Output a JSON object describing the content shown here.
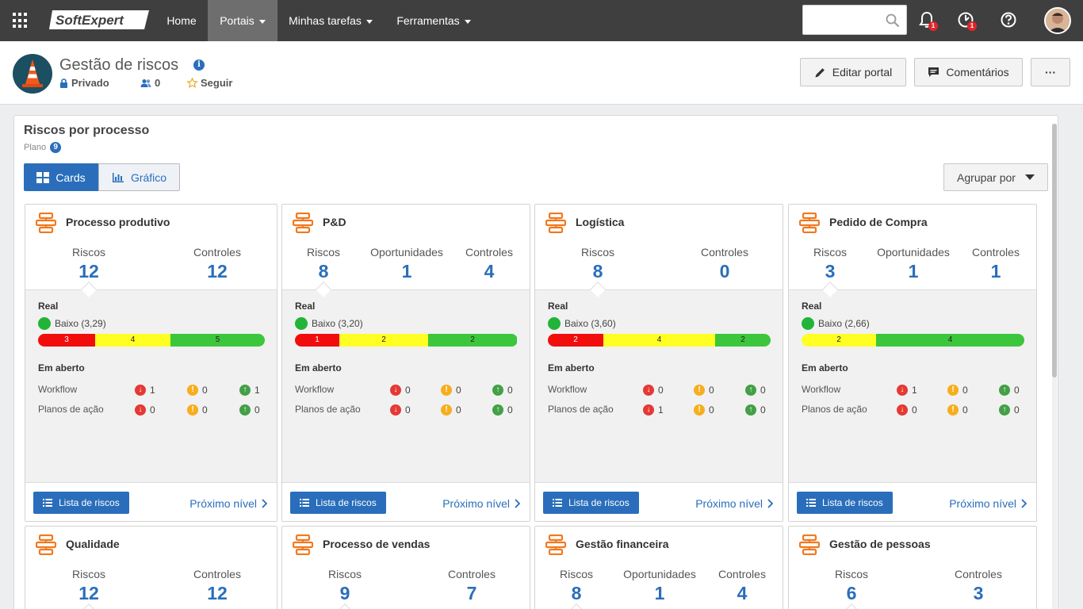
{
  "topbar": {
    "brand": "SoftExpert",
    "nav": [
      {
        "label": "Home"
      },
      {
        "label": "Portais"
      },
      {
        "label": "Minhas tarefas"
      },
      {
        "label": "Ferramentas"
      }
    ],
    "search_placeholder": "",
    "notifications_count": "1",
    "alerts_count": "1",
    "icons": [
      "apps-grid-icon",
      "search-icon",
      "bell-icon",
      "alert-icon",
      "help-icon",
      "user-avatar"
    ]
  },
  "header": {
    "title": "Gestão de riscos",
    "privacy": "Privado",
    "members": "0",
    "follow": "Seguir",
    "edit_button": "Editar portal",
    "comments_button": "Comentários",
    "more_button": "···"
  },
  "panel": {
    "title": "Riscos por processo",
    "subtitle": "Plano",
    "plan_count": "9",
    "view_cards": "Cards",
    "view_chart": "Gráfico",
    "group_by": "Agrupar por"
  },
  "labels": {
    "real": "Real",
    "open": "Em aberto",
    "workflow": "Workflow",
    "action_plans": "Planos de ação",
    "risk_list": "Lista de riscos",
    "next_level": "Próximo nível"
  },
  "colors": {
    "accent": "#2a6ebb",
    "topbar": "#3f3f3f",
    "risk_high": "#f20d0d",
    "risk_medium": "#ffff24",
    "risk_low": "#3cc63c"
  },
  "cards": [
    {
      "title": "Processo produtivo",
      "stats": [
        {
          "label": "Riscos",
          "value": "12"
        },
        {
          "label": "Controles",
          "value": "12"
        }
      ],
      "level": "Baixo (3,29)",
      "bar": [
        {
          "color": "red",
          "value": "3"
        },
        {
          "color": "yellow",
          "value": "4"
        },
        {
          "color": "green",
          "value": "5"
        }
      ],
      "workflow": [
        "1",
        "0",
        "1"
      ],
      "action_plans": [
        "0",
        "0",
        "0"
      ]
    },
    {
      "title": "P&D",
      "stats": [
        {
          "label": "Riscos",
          "value": "8"
        },
        {
          "label": "Oportunidades",
          "value": "1"
        },
        {
          "label": "Controles",
          "value": "4"
        }
      ],
      "level": "Baixo (3,20)",
      "bar": [
        {
          "color": "red",
          "value": "1"
        },
        {
          "color": "yellow",
          "value": "2"
        },
        {
          "color": "green",
          "value": "2"
        }
      ],
      "workflow": [
        "0",
        "0",
        "0"
      ],
      "action_plans": [
        "0",
        "0",
        "0"
      ]
    },
    {
      "title": "Logística",
      "stats": [
        {
          "label": "Riscos",
          "value": "8"
        },
        {
          "label": "Controles",
          "value": "0"
        }
      ],
      "level": "Baixo (3,60)",
      "bar": [
        {
          "color": "red",
          "value": "2"
        },
        {
          "color": "yellow",
          "value": "4"
        },
        {
          "color": "green",
          "value": "2"
        }
      ],
      "workflow": [
        "0",
        "0",
        "0"
      ],
      "action_plans": [
        "1",
        "0",
        "0"
      ]
    },
    {
      "title": "Pedido de Compra",
      "stats": [
        {
          "label": "Riscos",
          "value": "3"
        },
        {
          "label": "Oportunidades",
          "value": "1"
        },
        {
          "label": "Controles",
          "value": "1"
        }
      ],
      "level": "Baixo (2,66)",
      "bar": [
        {
          "color": "yellow",
          "value": "2"
        },
        {
          "color": "green",
          "value": "4"
        }
      ],
      "workflow": [
        "1",
        "0",
        "0"
      ],
      "action_plans": [
        "0",
        "0",
        "0"
      ]
    },
    {
      "title": "Qualidade",
      "stats": [
        {
          "label": "Riscos",
          "value": "12"
        },
        {
          "label": "Controles",
          "value": "12"
        }
      ]
    },
    {
      "title": "Processo de vendas",
      "stats": [
        {
          "label": "Riscos",
          "value": "9"
        },
        {
          "label": "Controles",
          "value": "7"
        }
      ]
    },
    {
      "title": "Gestão financeira",
      "stats": [
        {
          "label": "Riscos",
          "value": "8"
        },
        {
          "label": "Oportunidades",
          "value": "1"
        },
        {
          "label": "Controles",
          "value": "4"
        }
      ]
    },
    {
      "title": "Gestão de pessoas",
      "stats": [
        {
          "label": "Riscos",
          "value": "6"
        },
        {
          "label": "Controles",
          "value": "3"
        }
      ]
    }
  ]
}
